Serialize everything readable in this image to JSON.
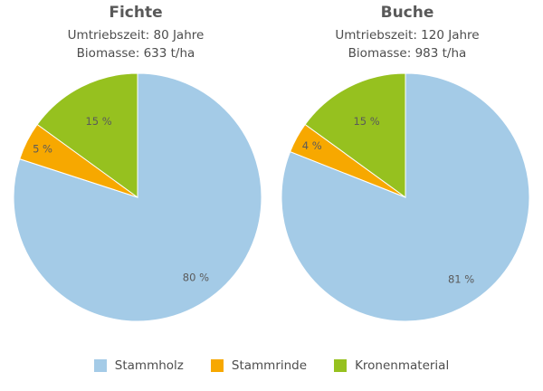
{
  "colors": {
    "Stammholz": "#a4cbe7",
    "Stammrinde": "#f7a800",
    "Kronenmaterial": "#96c11f"
  },
  "legend": [
    "Stammholz",
    "Stammrinde",
    "Kronenmaterial"
  ],
  "chart_data": [
    {
      "type": "pie",
      "title": "Fichte",
      "subtitle_lines": [
        "Umtriebszeit: 80 Jahre",
        "Biomasse: 633 t/ha"
      ],
      "slices": [
        {
          "name": "Stammholz",
          "value": 80,
          "label": "80 %"
        },
        {
          "name": "Stammrinde",
          "value": 5,
          "label": "5 %"
        },
        {
          "name": "Kronenmaterial",
          "value": 15,
          "label": "15 %"
        }
      ]
    },
    {
      "type": "pie",
      "title": "Buche",
      "subtitle_lines": [
        "Umtriebszeit: 120 Jahre",
        "Biomasse: 983 t/ha"
      ],
      "slices": [
        {
          "name": "Stammholz",
          "value": 81,
          "label": "81 %"
        },
        {
          "name": "Stammrinde",
          "value": 4,
          "label": "4 %"
        },
        {
          "name": "Kronenmaterial",
          "value": 15,
          "label": "15 %"
        }
      ]
    }
  ]
}
